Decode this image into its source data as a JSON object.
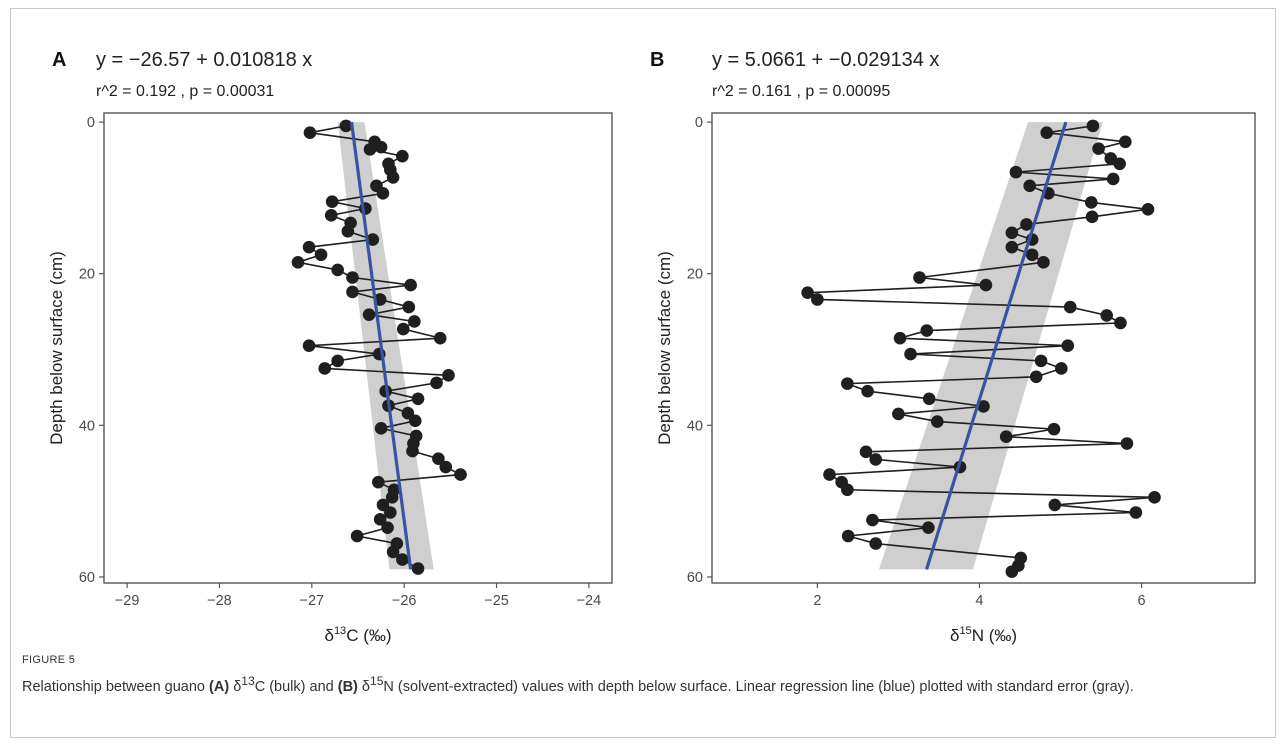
{
  "figure_label": "FIGURE 5",
  "caption": {
    "part1": "Relationship between guano ",
    "refA": "(A)",
    "delta_c": " δ",
    "sup_c": "13",
    "part2": "C (bulk) and ",
    "refB": "(B)",
    "delta_n": " δ",
    "sup_n": "15",
    "part3": "N (solvent-extracted) values with depth below surface. Linear regression line (blue) plotted with standard error (gray)."
  },
  "colors": {
    "points": "#1f1f1f",
    "regression": "#3a52a4",
    "ribbon": "#cfcfcf",
    "axis": "#555555"
  },
  "chart_data": [
    {
      "type": "scatter",
      "panel": "A",
      "equation": "y =  −26.57 + 0.010818 x",
      "stats": "r^2 = 0.192 , p = 0.00031",
      "xlabel": {
        "pre": "δ",
        "sup": "13",
        "post": "C (‰)"
      },
      "ylabel": "Depth below surface (cm)",
      "xlim": [
        -29.25,
        -23.75
      ],
      "ylim": [
        60.8,
        -1.2
      ],
      "xticks": [
        -29,
        -28,
        -27,
        -26,
        -25,
        -24
      ],
      "xtick_labels": [
        "−29",
        "−28",
        "−27",
        "−26",
        "−25",
        "−24"
      ],
      "yticks": [
        0,
        20,
        40,
        60
      ],
      "ytick_labels": [
        "0",
        "20",
        "40",
        "60"
      ],
      "grid": false,
      "connected": true,
      "regression": {
        "depth": [
          0,
          59
        ],
        "value": [
          -26.57,
          -25.93
        ]
      },
      "se_band": {
        "depth": [
          0,
          59
        ],
        "lower": [
          -26.72,
          -26.16
        ],
        "upper": [
          -26.43,
          -25.68
        ]
      },
      "points": {
        "x": [
          -26.63,
          -27.02,
          -26.32,
          -26.25,
          -26.37,
          -26.02,
          -26.17,
          -26.15,
          -26.12,
          -26.3,
          -26.23,
          -26.78,
          -26.42,
          -26.79,
          -26.58,
          -26.61,
          -26.34,
          -27.03,
          -26.9,
          -27.15,
          -26.72,
          -26.56,
          -25.93,
          -26.56,
          -26.26,
          -25.95,
          -26.38,
          -25.89,
          -26.01,
          -25.61,
          -27.03,
          -26.27,
          -26.72,
          -26.86,
          -25.52,
          -25.65,
          -26.2,
          -25.85,
          -26.17,
          -25.96,
          -25.88,
          -26.25,
          -25.87,
          -25.9,
          -25.91,
          -25.63,
          -25.55,
          -25.39,
          -26.28,
          -26.11,
          -26.13,
          -26.23,
          -26.15,
          -26.26,
          -26.18,
          -26.51,
          -26.08,
          -26.12,
          -26.02,
          -25.85
        ],
        "y": [
          0.5,
          1.4,
          2.6,
          3.3,
          3.6,
          4.5,
          5.5,
          6.3,
          7.3,
          8.4,
          9.4,
          10.5,
          11.4,
          12.3,
          13.3,
          14.4,
          15.5,
          16.5,
          17.5,
          18.5,
          19.5,
          20.5,
          21.5,
          22.4,
          23.4,
          24.4,
          25.4,
          26.3,
          27.3,
          28.5,
          29.5,
          30.6,
          31.5,
          32.5,
          33.4,
          34.4,
          35.5,
          36.5,
          37.4,
          38.4,
          39.4,
          40.4,
          41.4,
          42.4,
          43.4,
          44.4,
          45.5,
          46.5,
          47.5,
          48.5,
          49.5,
          50.5,
          51.5,
          52.4,
          53.5,
          54.6,
          55.6,
          56.7,
          57.7,
          58.9
        ]
      }
    },
    {
      "type": "scatter",
      "panel": "B",
      "equation": "y =  5.0661 + −0.029134 x",
      "stats": "r^2 = 0.161 , p = 0.00095",
      "xlabel": {
        "pre": "δ",
        "sup": "15",
        "post": "N (‰)"
      },
      "ylabel": "Depth below surface (cm)",
      "xlim": [
        0.7,
        7.4
      ],
      "ylim": [
        60.8,
        -1.2
      ],
      "xticks": [
        2,
        4,
        6
      ],
      "xtick_labels": [
        "2",
        "4",
        "6"
      ],
      "yticks": [
        0,
        20,
        40,
        60
      ],
      "ytick_labels": [
        "0",
        "20",
        "40",
        "60"
      ],
      "grid": false,
      "connected": true,
      "regression": {
        "depth": [
          0,
          59
        ],
        "value": [
          5.0661,
          3.347
        ]
      },
      "se_band": {
        "depth": [
          0,
          59
        ],
        "lower": [
          4.6,
          2.76
        ],
        "upper": [
          5.52,
          3.92
        ]
      },
      "points": {
        "x": [
          5.4,
          4.83,
          5.8,
          5.47,
          5.62,
          5.73,
          4.45,
          5.65,
          4.62,
          4.85,
          5.38,
          6.08,
          5.39,
          4.58,
          4.4,
          4.65,
          4.4,
          4.65,
          4.79,
          3.26,
          4.08,
          1.88,
          2.0,
          5.12,
          5.57,
          5.74,
          3.35,
          3.02,
          5.09,
          3.15,
          4.76,
          5.01,
          4.7,
          2.37,
          2.62,
          3.38,
          4.05,
          3.0,
          3.48,
          4.92,
          4.33,
          5.82,
          2.6,
          2.72,
          3.76,
          2.15,
          2.3,
          2.37,
          6.16,
          4.93,
          5.93,
          2.68,
          3.37,
          2.38,
          2.72,
          4.51,
          4.48,
          4.4
        ],
        "y": [
          0.5,
          1.4,
          2.6,
          3.5,
          4.8,
          5.5,
          6.6,
          7.5,
          8.4,
          9.4,
          10.6,
          11.5,
          12.5,
          13.5,
          14.6,
          15.5,
          16.5,
          17.5,
          18.5,
          20.5,
          21.5,
          22.5,
          23.4,
          24.4,
          25.5,
          26.5,
          27.5,
          28.5,
          29.5,
          30.6,
          31.5,
          32.5,
          33.6,
          34.5,
          35.5,
          36.5,
          37.5,
          38.5,
          39.5,
          40.5,
          41.5,
          42.4,
          43.5,
          44.5,
          45.5,
          46.5,
          47.5,
          48.5,
          49.5,
          50.5,
          51.5,
          52.5,
          53.5,
          54.6,
          55.6,
          57.5,
          58.5,
          59.3
        ]
      }
    }
  ]
}
